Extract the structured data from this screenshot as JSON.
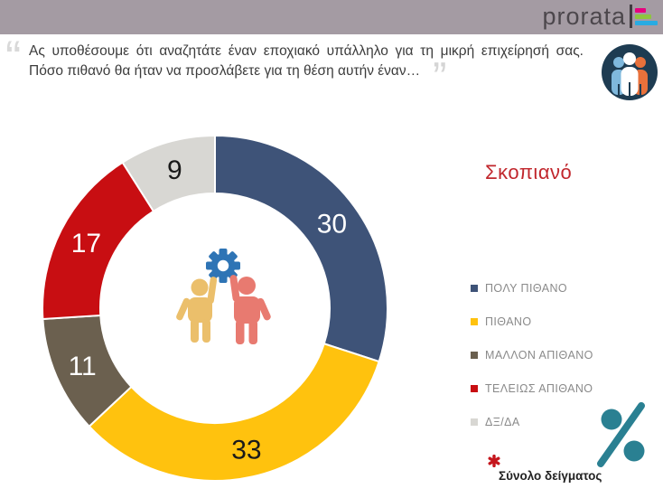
{
  "header": {
    "logo_text": "prorata",
    "logo_bar_colors": [
      "#E6007E",
      "#8DC63F",
      "#29ABE2"
    ]
  },
  "question": {
    "open_quote": "“",
    "line1": "Ας υποθέσουμε ότι αναζητάτε έναν εποχιακό υπάλληλο για τη μικρή επιχείρησή σας.",
    "line2": "Πόσο πιθανό θα ήταν να προσλάβετε για τη θέση αυτήν έναν…",
    "close_quote": "”"
  },
  "chart_data": {
    "type": "pie",
    "donut": true,
    "title": "Σκοπιανό",
    "title_color": "#C1272D",
    "start_angle_deg": 0,
    "direction": "clockwise",
    "legend_position": "right",
    "segments": [
      {
        "label": "ΠΟΛΥ ΠΙΘΑΝΟ",
        "value": 30,
        "color": "#3E5378",
        "label_color": "#FFFFFF"
      },
      {
        "label": "ΠΙΘΑΝΟ",
        "value": 33,
        "color": "#FFC20E",
        "label_color": "#1A1A1A"
      },
      {
        "label": "ΜΑΛΛΟΝ ΑΠΙΘΑΝΟ",
        "value": 11,
        "color": "#6B604F",
        "label_color": "#FFFFFF"
      },
      {
        "label": "ΤΕΛΕΙΩΣ ΑΠΙΘΑΝΟ",
        "value": 17,
        "color": "#C80E12",
        "label_color": "#FFFFFF"
      },
      {
        "label": "ΔΞ/ΔΑ",
        "value": 9,
        "color": "#D8D7D3",
        "label_color": "#1A1A1A"
      }
    ]
  },
  "footnote": {
    "marker_color": "#C5161D",
    "text": "Σύνολο δείγματος"
  },
  "icons": {
    "people_badge_bg": "#1E3C52",
    "percent_color": "#2A8092",
    "gear_color": "#2E74B5",
    "person_left_color": "#EBBF6B",
    "person_right_color": "#E87A70"
  }
}
